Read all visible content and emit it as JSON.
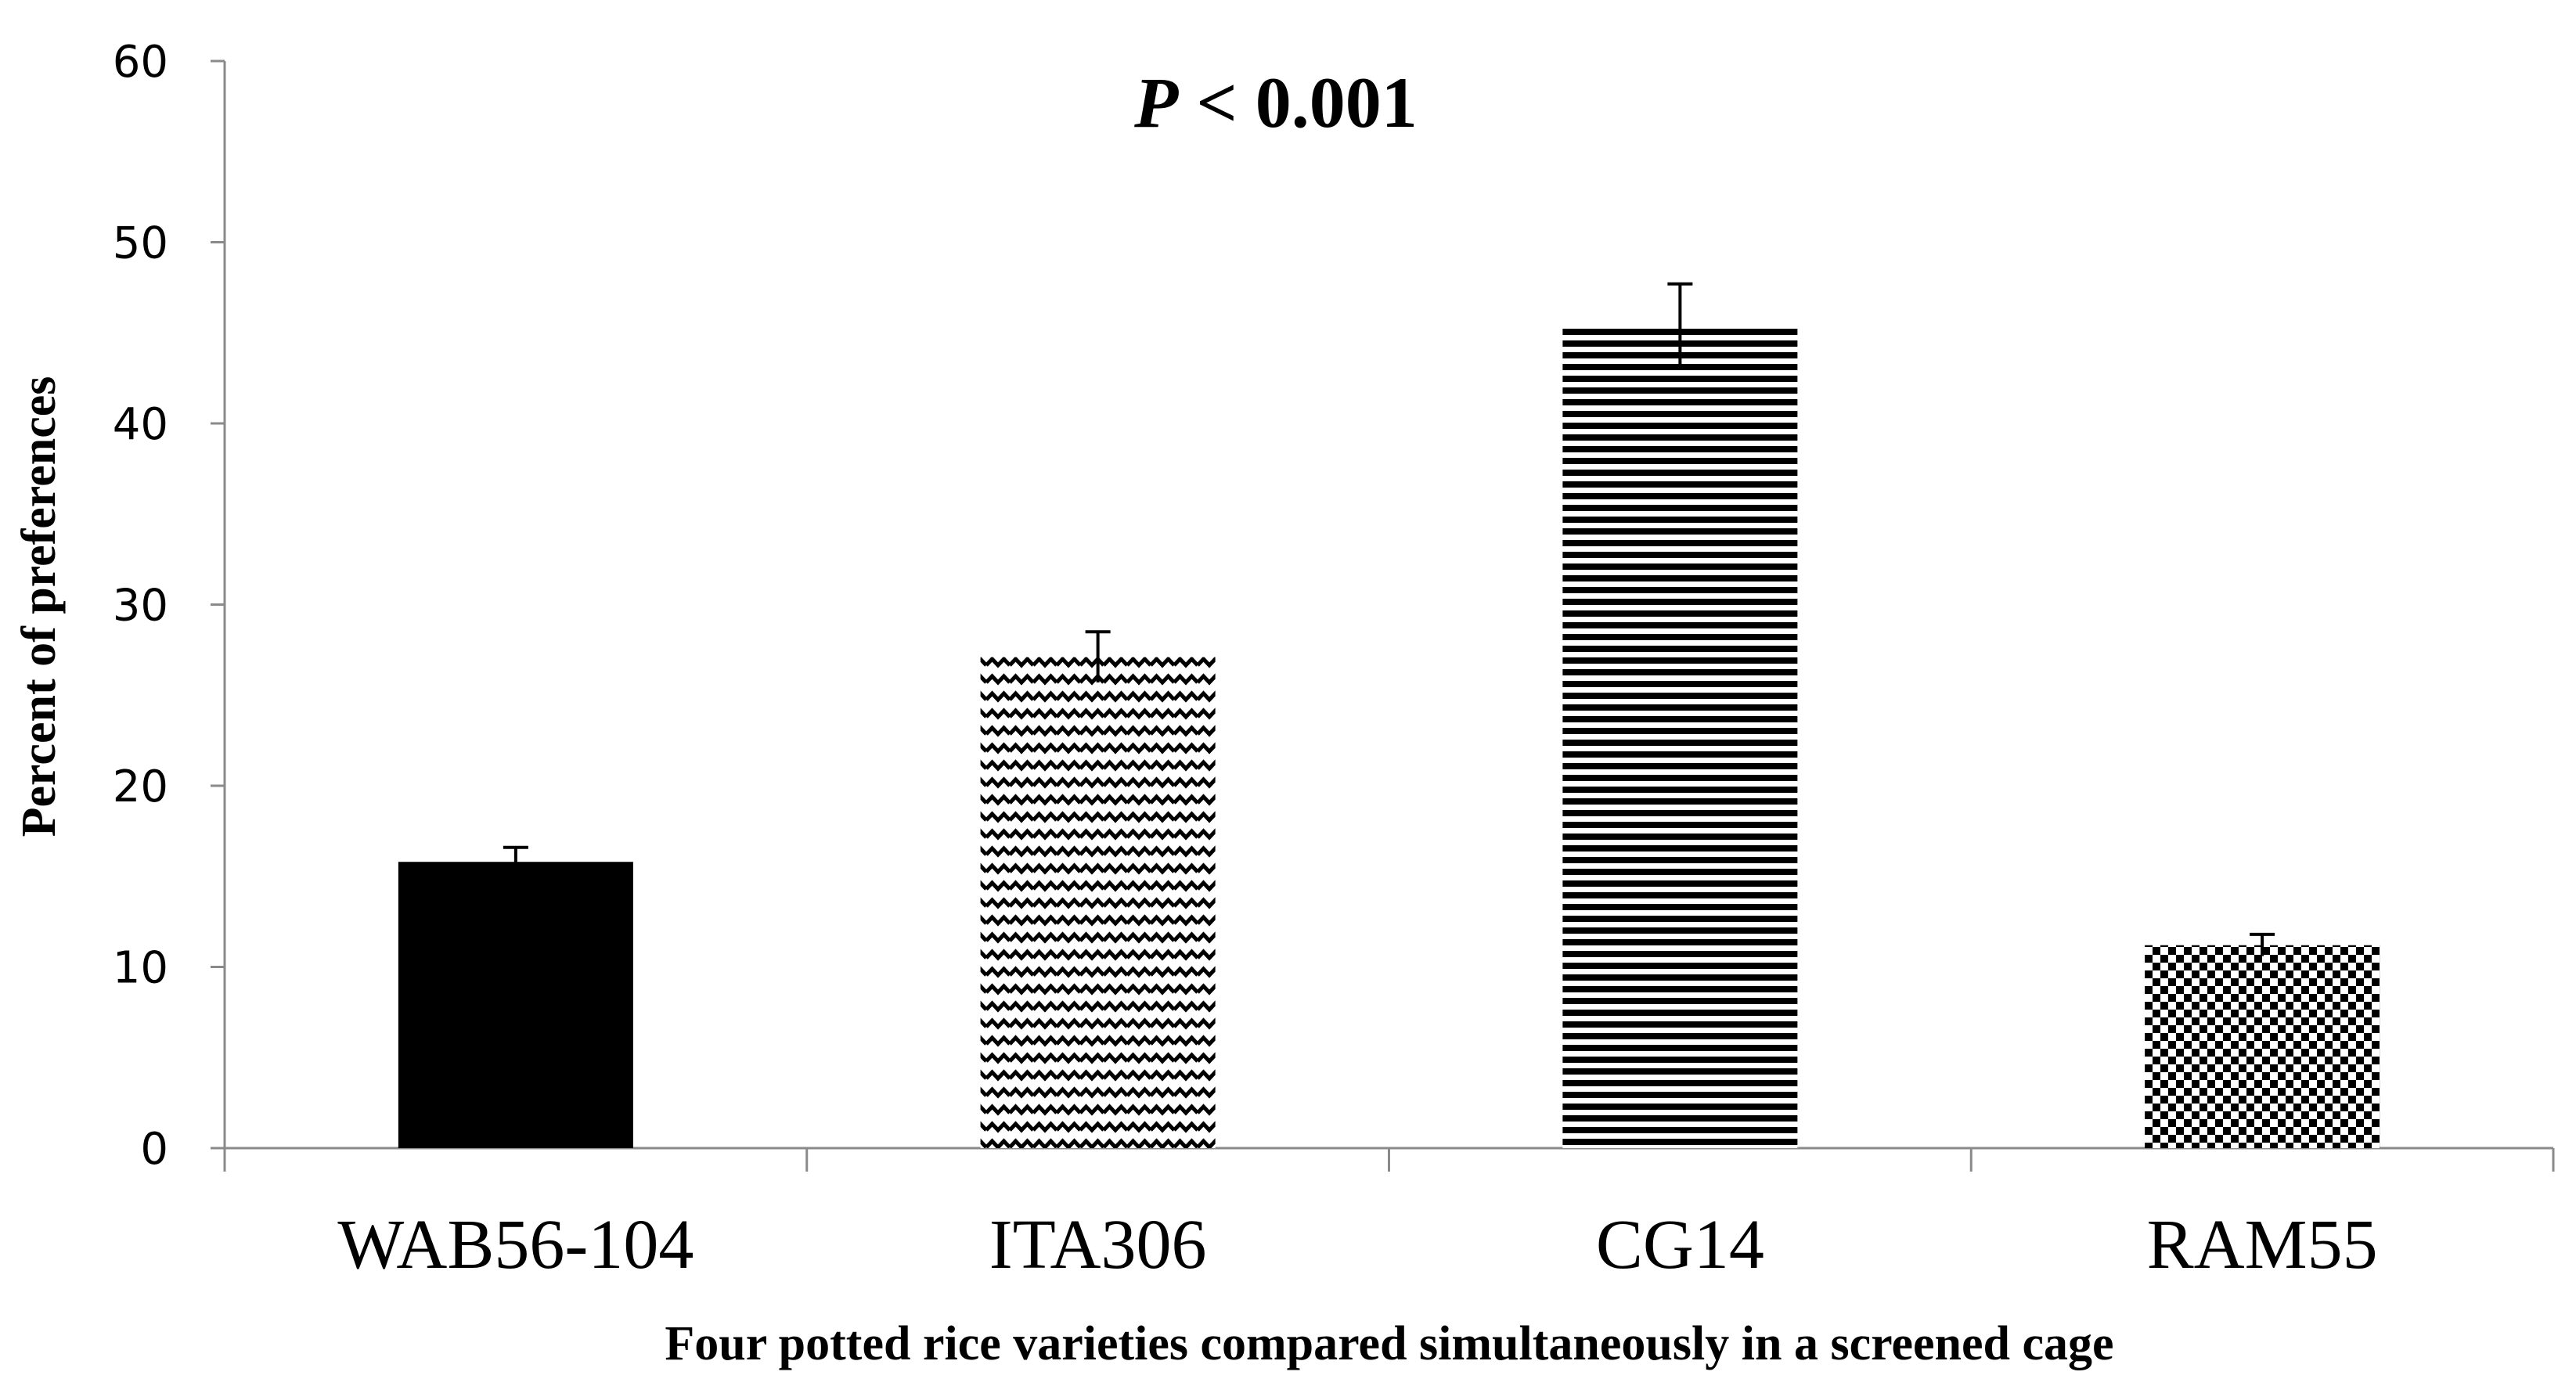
{
  "chart_data": {
    "type": "bar",
    "title": "",
    "annotation": {
      "italic": "P",
      "rest": " < 0.001"
    },
    "xlabel": "Four potted rice varieties compared simultaneously in a screened cage",
    "ylabel": "Percent of preferences",
    "categories": [
      "WAB56-104",
      "ITA306",
      "CG14",
      "RAM55"
    ],
    "values": [
      15.8,
      27.1,
      45.4,
      11.2
    ],
    "errors": [
      0.8,
      1.4,
      2.3,
      0.6
    ],
    "patterns": [
      "solid",
      "zigzag",
      "horizontal-lines",
      "checker"
    ],
    "ylim": [
      0,
      60
    ],
    "yticks": [
      "0",
      "10",
      "20",
      "30",
      "40",
      "50",
      "60"
    ],
    "grid": false,
    "colors": {
      "bar": "#000000",
      "background": "#ffffff"
    }
  }
}
